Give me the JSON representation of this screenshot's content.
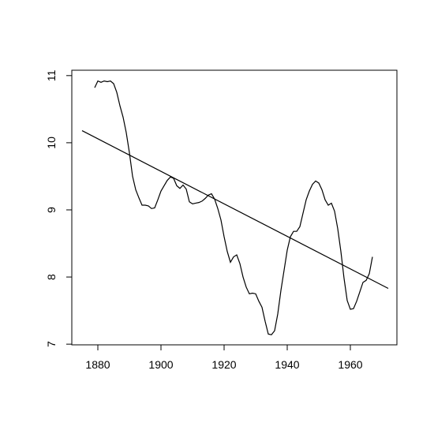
{
  "chart_data": {
    "type": "line",
    "series": [
      {
        "color": "#000000",
        "x": [
          1879,
          1880,
          1881,
          1882,
          1883,
          1884,
          1885,
          1886,
          1887,
          1888,
          1889,
          1890,
          1891,
          1892,
          1893,
          1894,
          1895,
          1896,
          1897,
          1898,
          1899,
          1900,
          1901,
          1902,
          1903,
          1904,
          1905,
          1906,
          1907,
          1908,
          1909,
          1910,
          1911,
          1912,
          1913,
          1914,
          1915,
          1916,
          1917,
          1918,
          1919,
          1920,
          1921,
          1922,
          1923,
          1924,
          1925,
          1926,
          1927,
          1928,
          1929,
          1930,
          1931,
          1932,
          1933,
          1934,
          1935,
          1936,
          1937,
          1938,
          1939,
          1940,
          1941,
          1942,
          1943,
          1944,
          1945,
          1946,
          1947,
          1948,
          1949,
          1950,
          1951,
          1952,
          1953,
          1954,
          1955,
          1956,
          1957,
          1958,
          1959,
          1960,
          1961,
          1962,
          1963,
          1964,
          1965,
          1966,
          1967
        ],
        "values": [
          10.82,
          10.92,
          10.9,
          10.92,
          10.91,
          10.92,
          10.88,
          10.75,
          10.55,
          10.38,
          10.15,
          9.85,
          9.5,
          9.3,
          9.18,
          9.07,
          9.07,
          9.06,
          9.02,
          9.03,
          9.15,
          9.28,
          9.36,
          9.44,
          9.49,
          9.47,
          9.36,
          9.32,
          9.37,
          9.31,
          9.12,
          9.09,
          9.1,
          9.11,
          9.13,
          9.17,
          9.22,
          9.24,
          9.16,
          9.02,
          8.85,
          8.6,
          8.38,
          8.22,
          8.3,
          8.33,
          8.2,
          8.0,
          7.85,
          7.75,
          7.76,
          7.75,
          7.64,
          7.55,
          7.34,
          7.15,
          7.14,
          7.2,
          7.45,
          7.8,
          8.1,
          8.4,
          8.6,
          8.68,
          8.68,
          8.75,
          8.95,
          9.15,
          9.28,
          9.38,
          9.43,
          9.4,
          9.3,
          9.15,
          9.07,
          9.1,
          8.98,
          8.72,
          8.38,
          7.98,
          7.65,
          7.52,
          7.53,
          7.64,
          7.78,
          7.92,
          7.95,
          8.05,
          8.3
        ]
      },
      {
        "color": "#000000",
        "x": [
          1875,
          1972
        ],
        "values": [
          10.18,
          7.83
        ]
      }
    ],
    "xlim": [
      1871.75,
      1974.75
    ],
    "xticks": [
      1880,
      1900,
      1920,
      1940,
      1960
    ],
    "ylim": [
      6.99,
      11.08
    ],
    "yticks": [
      7,
      8,
      9,
      10,
      11
    ]
  }
}
